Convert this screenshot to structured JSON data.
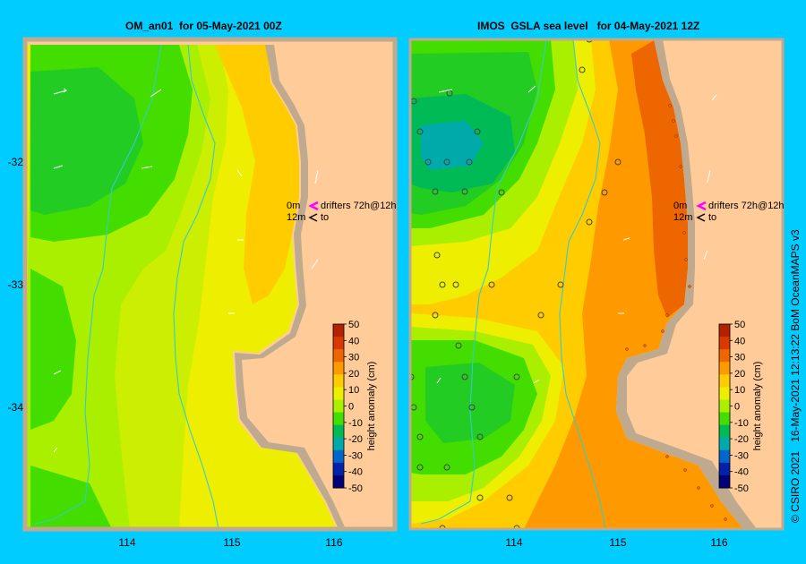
{
  "panels": [
    {
      "title": "OM_an01  for 05-May-2021 00Z",
      "legend_note_1": "0m",
      "legend_note_2": "12m",
      "drifter_text_1": "drifters 72h@12h",
      "drifter_text_2": "to"
    },
    {
      "title": "IMOS  GSLA sea level   for 04-May-2021 12Z",
      "legend_note_1": "0m",
      "legend_note_2": "12m",
      "drifter_text_1": "drifters 72h@12h",
      "drifter_text_2": "to"
    }
  ],
  "axes": {
    "x_ticks": [
      "114",
      "115",
      "116"
    ],
    "y_ticks": [
      "-32",
      "-33",
      "-34"
    ]
  },
  "colorbar": {
    "label": "height anomaly (cm)",
    "ticks": [
      "50",
      "40",
      "30",
      "20",
      "10",
      "0",
      "-10",
      "-20",
      "-30",
      "-40",
      "-50"
    ],
    "colors": [
      "#b22200",
      "#d63a00",
      "#ee6600",
      "#ff9900",
      "#ffcc00",
      "#eeee00",
      "#aaee00",
      "#44dd00",
      "#00bb55",
      "#00aaaa",
      "#0066cc",
      "#0022aa",
      "#000077"
    ]
  },
  "credit": "© CSIRO 2021   16-May-2021 12:13:22 BoM OceanMAPS v3",
  "colors": {
    "page_bg": "#00ccff",
    "land": "#ffcc99",
    "coast": "#bfaa8f",
    "isobath": "#33cccc"
  }
}
